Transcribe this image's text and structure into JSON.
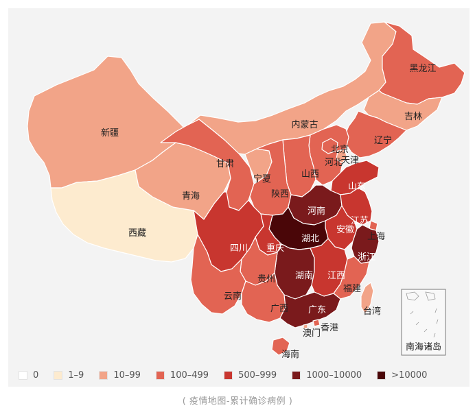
{
  "legend": [
    {
      "label": "0",
      "color": "#ffffff"
    },
    {
      "label": "1–9",
      "color": "#fdebcf"
    },
    {
      "label": "10–99",
      "color": "#f2a488"
    },
    {
      "label": "100–499",
      "color": "#e26453"
    },
    {
      "label": "500–999",
      "color": "#c8362f"
    },
    {
      "label": "1000–10000",
      "color": "#7a1a1c"
    },
    {
      "label": ">10000",
      "color": "#4a0608"
    }
  ],
  "provinces": [
    {
      "key": "xinjiang",
      "name": "新疆",
      "bucket": 2
    },
    {
      "key": "xizang",
      "name": "西藏",
      "bucket": 1
    },
    {
      "key": "qinghai",
      "name": "青海",
      "bucket": 2
    },
    {
      "key": "gansu",
      "name": "甘肃",
      "bucket": 3
    },
    {
      "key": "neimenggu",
      "name": "内蒙古",
      "bucket": 2
    },
    {
      "key": "heilongjiang",
      "name": "黑龙江",
      "bucket": 3
    },
    {
      "key": "jilin",
      "name": "吉林",
      "bucket": 2
    },
    {
      "key": "liaoning",
      "name": "辽宁",
      "bucket": 3
    },
    {
      "key": "beijing",
      "name": "北京",
      "bucket": 3
    },
    {
      "key": "tianjin",
      "name": "天津",
      "bucket": 2
    },
    {
      "key": "hebei",
      "name": "河北",
      "bucket": 3
    },
    {
      "key": "shanxi",
      "name": "山西",
      "bucket": 3
    },
    {
      "key": "ningxia",
      "name": "宁夏",
      "bucket": 2
    },
    {
      "key": "shaanxi",
      "name": "陕西",
      "bucket": 3
    },
    {
      "key": "shandong",
      "name": "山东",
      "bucket": 4
    },
    {
      "key": "henan",
      "name": "河南",
      "bucket": 5
    },
    {
      "key": "jiangsu",
      "name": "江苏",
      "bucket": 4
    },
    {
      "key": "anhui",
      "name": "安徽",
      "bucket": 4
    },
    {
      "key": "shanghai",
      "name": "上海",
      "bucket": 3
    },
    {
      "key": "hubei",
      "name": "湖北",
      "bucket": 6
    },
    {
      "key": "sichuan",
      "name": "四川",
      "bucket": 4
    },
    {
      "key": "chongqing",
      "name": "重庆",
      "bucket": 4
    },
    {
      "key": "zhejiang",
      "name": "浙江",
      "bucket": 5
    },
    {
      "key": "hunan",
      "name": "湖南",
      "bucket": 5
    },
    {
      "key": "jiangxi",
      "name": "江西",
      "bucket": 4
    },
    {
      "key": "guizhou",
      "name": "贵州",
      "bucket": 3
    },
    {
      "key": "yunnan",
      "name": "云南",
      "bucket": 3
    },
    {
      "key": "guangxi",
      "name": "广西",
      "bucket": 3
    },
    {
      "key": "guangdong",
      "name": "广东",
      "bucket": 5
    },
    {
      "key": "fujian",
      "name": "福建",
      "bucket": 3
    },
    {
      "key": "taiwan",
      "name": "台湾",
      "bucket": 2
    },
    {
      "key": "xianggang",
      "name": "香港",
      "bucket": 3
    },
    {
      "key": "aomen",
      "name": "澳门",
      "bucket": 2
    },
    {
      "key": "hainan",
      "name": "海南",
      "bucket": 3
    }
  ],
  "inset_label": "南海诸岛",
  "caption": "( 疫情地图-累计确诊病例 )"
}
